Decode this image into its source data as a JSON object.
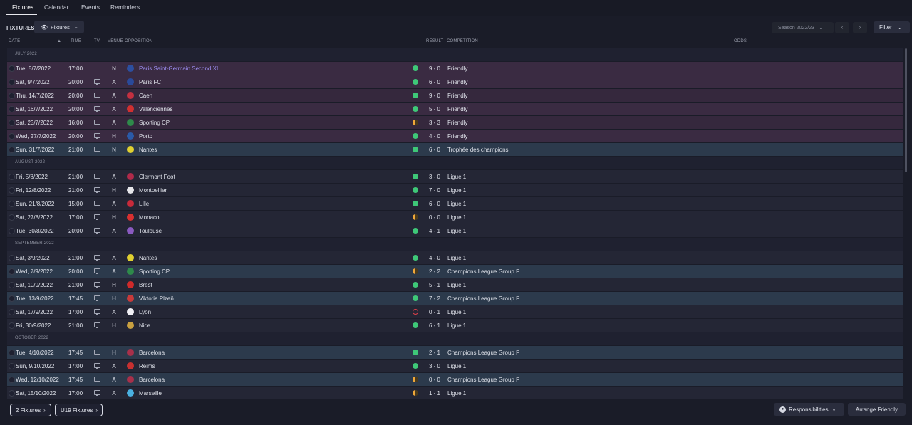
{
  "tabs": [
    {
      "label": "Fixtures",
      "active": true
    },
    {
      "label": "Calendar"
    },
    {
      "label": "Events"
    },
    {
      "label": "Reminders"
    }
  ],
  "toolbar": {
    "title": "FIXTURES",
    "view_dropdown": "Fixtures",
    "season": "Season 2022/23",
    "filter": "Filter"
  },
  "columns": {
    "date": "DATE",
    "time": "TIME",
    "tv": "TV",
    "venue": "VENUE",
    "opposition": "OPPOSITION",
    "result": "RESULT",
    "competition": "COMPETITION",
    "odds": "ODDS"
  },
  "rows": [
    {
      "kind": "month",
      "label": "JULY 2022"
    },
    {
      "kind": "fixture",
      "date": "Tue, 5/7/2022",
      "time": "17:00",
      "tv": false,
      "venue": "N",
      "opp": "Paris Saint-Germain Second XI",
      "link": true,
      "crest": "#2c4fa0",
      "outcome": "win",
      "score": "9 - 0",
      "comp": "Friendly",
      "style": "friendly"
    },
    {
      "kind": "fixture",
      "date": "Sat, 9/7/2022",
      "time": "20:00",
      "tv": true,
      "venue": "A",
      "opp": "Paris FC",
      "crest": "#2a4a9a",
      "outcome": "win",
      "score": "6 - 0",
      "comp": "Friendly",
      "style": "friendly"
    },
    {
      "kind": "fixture",
      "date": "Thu, 14/7/2022",
      "time": "20:00",
      "tv": true,
      "venue": "A",
      "opp": "Caen",
      "crest": "#c43040",
      "outcome": "win",
      "score": "9 - 0",
      "comp": "Friendly",
      "style": "friendly alt"
    },
    {
      "kind": "fixture",
      "date": "Sat, 16/7/2022",
      "time": "20:00",
      "tv": true,
      "venue": "A",
      "opp": "Valenciennes",
      "crest": "#d03030",
      "outcome": "win",
      "score": "5 - 0",
      "comp": "Friendly",
      "style": "friendly"
    },
    {
      "kind": "fixture",
      "date": "Sat, 23/7/2022",
      "time": "16:00",
      "tv": true,
      "venue": "A",
      "opp": "Sporting CP",
      "crest": "#2e8a4a",
      "outcome": "draw",
      "score": "3 - 3",
      "comp": "Friendly",
      "style": "friendly alt"
    },
    {
      "kind": "fixture",
      "date": "Wed, 27/7/2022",
      "time": "20:00",
      "tv": true,
      "venue": "H",
      "opp": "Porto",
      "crest": "#2a5aa8",
      "outcome": "win",
      "score": "4 - 0",
      "comp": "Friendly",
      "style": "friendly"
    },
    {
      "kind": "fixture",
      "date": "Sun, 31/7/2022",
      "time": "21:00",
      "tv": true,
      "venue": "N",
      "opp": "Nantes",
      "crest": "#e0d030",
      "outcome": "win",
      "score": "6 - 0",
      "comp": "Trophée des champions",
      "style": "hl"
    },
    {
      "kind": "month",
      "label": "AUGUST 2022"
    },
    {
      "kind": "fixture",
      "date": "Fri, 5/8/2022",
      "time": "21:00",
      "tv": true,
      "venue": "A",
      "opp": "Clermont Foot",
      "crest": "#b02a4a",
      "outcome": "win",
      "score": "3 - 0",
      "comp": "Ligue 1",
      "style": ""
    },
    {
      "kind": "fixture",
      "date": "Fri, 12/8/2022",
      "time": "21:00",
      "tv": true,
      "venue": "H",
      "opp": "Montpellier",
      "crest": "#e6e6ea",
      "outcome": "win",
      "score": "7 - 0",
      "comp": "Ligue 1",
      "style": ""
    },
    {
      "kind": "fixture",
      "date": "Sun, 21/8/2022",
      "time": "15:00",
      "tv": true,
      "venue": "A",
      "opp": "Lille",
      "crest": "#c82a3a",
      "outcome": "win",
      "score": "6 - 0",
      "comp": "Ligue 1",
      "style": ""
    },
    {
      "kind": "fixture",
      "date": "Sat, 27/8/2022",
      "time": "17:00",
      "tv": true,
      "venue": "H",
      "opp": "Monaco",
      "crest": "#d83030",
      "outcome": "draw",
      "score": "0 - 0",
      "comp": "Ligue 1",
      "style": ""
    },
    {
      "kind": "fixture",
      "date": "Tue, 30/8/2022",
      "time": "20:00",
      "tv": true,
      "venue": "A",
      "opp": "Toulouse",
      "crest": "#8a5ac0",
      "outcome": "win",
      "score": "4 - 1",
      "comp": "Ligue 1",
      "style": ""
    },
    {
      "kind": "month",
      "label": "SEPTEMBER 2022"
    },
    {
      "kind": "fixture",
      "date": "Sat, 3/9/2022",
      "time": "21:00",
      "tv": true,
      "venue": "A",
      "opp": "Nantes",
      "crest": "#e0d030",
      "outcome": "win",
      "score": "4 - 0",
      "comp": "Ligue 1",
      "style": ""
    },
    {
      "kind": "fixture",
      "date": "Wed, 7/9/2022",
      "time": "20:00",
      "tv": true,
      "venue": "A",
      "opp": "Sporting CP",
      "crest": "#2e8a4a",
      "outcome": "draw",
      "score": "2 - 2",
      "comp": "Champions League Group F",
      "style": "hl"
    },
    {
      "kind": "fixture",
      "date": "Sat, 10/9/2022",
      "time": "21:00",
      "tv": true,
      "venue": "H",
      "opp": "Brest",
      "crest": "#d02a2a",
      "outcome": "win",
      "score": "5 - 1",
      "comp": "Ligue 1",
      "style": ""
    },
    {
      "kind": "fixture",
      "date": "Tue, 13/9/2022",
      "time": "17:45",
      "tv": true,
      "venue": "H",
      "opp": "Viktoria Plzeň",
      "crest": "#c83a3a",
      "outcome": "win",
      "score": "7 - 2",
      "comp": "Champions League Group F",
      "style": "hl"
    },
    {
      "kind": "fixture",
      "date": "Sat, 17/9/2022",
      "time": "17:00",
      "tv": true,
      "venue": "A",
      "opp": "Lyon",
      "crest": "#f0f0f4",
      "outcome": "loss",
      "score": "0 - 1",
      "comp": "Ligue 1",
      "style": ""
    },
    {
      "kind": "fixture",
      "date": "Fri, 30/9/2022",
      "time": "21:00",
      "tv": true,
      "venue": "H",
      "opp": "Nice",
      "crest": "#c8a040",
      "outcome": "win",
      "score": "6 - 1",
      "comp": "Ligue 1",
      "style": ""
    },
    {
      "kind": "month",
      "label": "OCTOBER 2022"
    },
    {
      "kind": "fixture",
      "date": "Tue, 4/10/2022",
      "time": "17:45",
      "tv": true,
      "venue": "H",
      "opp": "Barcelona",
      "crest": "#a8304a",
      "outcome": "win",
      "score": "2 - 1",
      "comp": "Champions League Group F",
      "style": "hl"
    },
    {
      "kind": "fixture",
      "date": "Sun, 9/10/2022",
      "time": "17:00",
      "tv": true,
      "venue": "A",
      "opp": "Reims",
      "crest": "#c83030",
      "outcome": "win",
      "score": "3 - 0",
      "comp": "Ligue 1",
      "style": ""
    },
    {
      "kind": "fixture",
      "date": "Wed, 12/10/2022",
      "time": "17:45",
      "tv": true,
      "venue": "A",
      "opp": "Barcelona",
      "crest": "#a8304a",
      "outcome": "draw",
      "score": "0 - 0",
      "comp": "Champions League Group F",
      "style": "hl"
    },
    {
      "kind": "fixture",
      "date": "Sat, 15/10/2022",
      "time": "17:00",
      "tv": true,
      "venue": "A",
      "opp": "Marseille",
      "crest": "#4ab0e0",
      "outcome": "draw",
      "score": "1 - 1",
      "comp": "Ligue 1",
      "style": ""
    }
  ],
  "footer": {
    "btn1": "2 Fixtures",
    "btn2": "U19 Fixtures",
    "responsibilities": "Responsibilities",
    "arrange": "Arrange Friendly"
  }
}
